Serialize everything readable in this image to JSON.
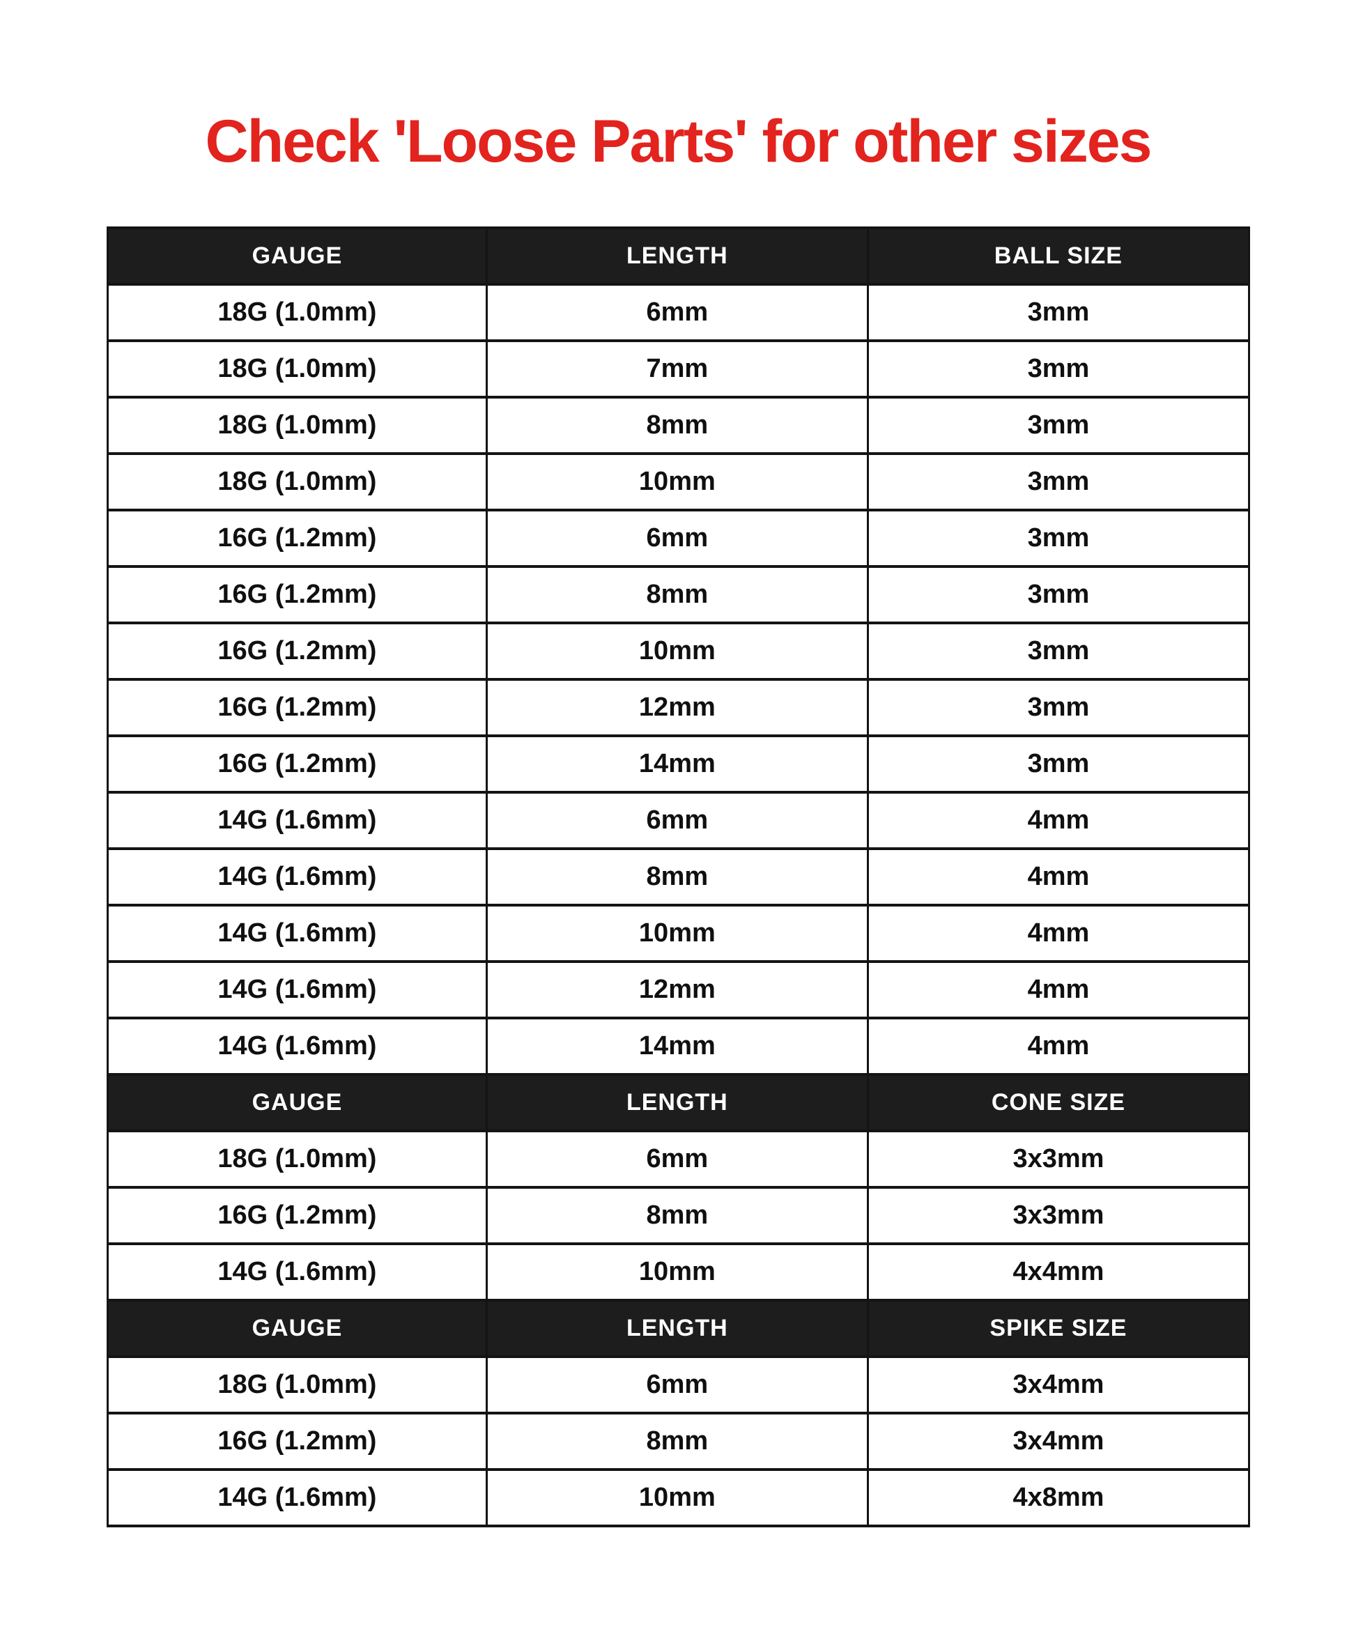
{
  "title": {
    "text": "Check 'Loose Parts' for other sizes"
  },
  "colors": {
    "page_bg": "#ffffff",
    "title_red": "#e2231e",
    "header_bg": "#1d1d1d",
    "header_text": "#ffffff",
    "cell_text": "#101010",
    "border": "#141414"
  },
  "chart_data": {
    "type": "table",
    "title": "Check 'Loose Parts' for other sizes",
    "columns_per_section": 3,
    "sections": [
      {
        "headers": [
          "GAUGE",
          "LENGTH",
          "BALL SIZE"
        ],
        "rows": [
          [
            "18G (1.0mm)",
            "6mm",
            "3mm"
          ],
          [
            "18G (1.0mm)",
            "7mm",
            "3mm"
          ],
          [
            "18G (1.0mm)",
            "8mm",
            "3mm"
          ],
          [
            "18G (1.0mm)",
            "10mm",
            "3mm"
          ],
          [
            "16G (1.2mm)",
            "6mm",
            "3mm"
          ],
          [
            "16G (1.2mm)",
            "8mm",
            "3mm"
          ],
          [
            "16G (1.2mm)",
            "10mm",
            "3mm"
          ],
          [
            "16G (1.2mm)",
            "12mm",
            "3mm"
          ],
          [
            "16G (1.2mm)",
            "14mm",
            "3mm"
          ],
          [
            "14G (1.6mm)",
            "6mm",
            "4mm"
          ],
          [
            "14G (1.6mm)",
            "8mm",
            "4mm"
          ],
          [
            "14G (1.6mm)",
            "10mm",
            "4mm"
          ],
          [
            "14G (1.6mm)",
            "12mm",
            "4mm"
          ],
          [
            "14G (1.6mm)",
            "14mm",
            "4mm"
          ]
        ]
      },
      {
        "headers": [
          "GAUGE",
          "LENGTH",
          "CONE SIZE"
        ],
        "rows": [
          [
            "18G (1.0mm)",
            "6mm",
            "3x3mm"
          ],
          [
            "16G (1.2mm)",
            "8mm",
            "3x3mm"
          ],
          [
            "14G (1.6mm)",
            "10mm",
            "4x4mm"
          ]
        ]
      },
      {
        "headers": [
          "GAUGE",
          "LENGTH",
          "SPIKE SIZE"
        ],
        "rows": [
          [
            "18G (1.0mm)",
            "6mm",
            "3x4mm"
          ],
          [
            "16G (1.2mm)",
            "8mm",
            "3x4mm"
          ],
          [
            "14G (1.6mm)",
            "10mm",
            "4x8mm"
          ]
        ]
      }
    ]
  }
}
